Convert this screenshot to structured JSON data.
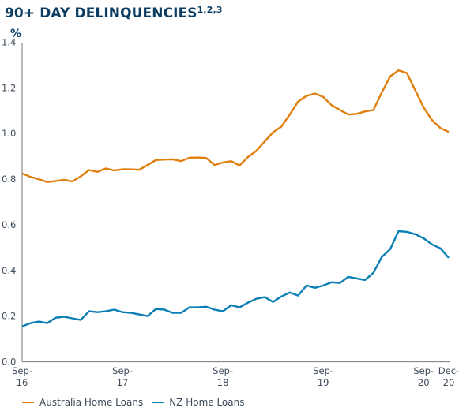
{
  "chart_data": {
    "type": "line",
    "title": "90+ DAY DELINQUENCIES",
    "title_superscript": "1,2,3",
    "ylabel": "%",
    "xlabel": "",
    "ylim": [
      0,
      1.4
    ],
    "yticks": [
      "0.0",
      "0.2",
      "0.4",
      "0.6",
      "0.8",
      "1.0",
      "1.2",
      "1.4"
    ],
    "ytick_values": [
      0,
      0.2,
      0.4,
      0.6,
      0.8,
      1.0,
      1.2,
      1.4
    ],
    "x_start": "Sep-16",
    "x_end": "Dec-20",
    "x_count": 52,
    "xticks": [
      {
        "month_index": 0,
        "line1": "Sep-",
        "line2": "16"
      },
      {
        "month_index": 12,
        "line1": "Sep-",
        "line2": "17"
      },
      {
        "month_index": 24,
        "line1": "Sep-",
        "line2": "18"
      },
      {
        "month_index": 36,
        "line1": "Sep-",
        "line2": "19"
      },
      {
        "month_index": 48,
        "line1": "Sep-",
        "line2": "20"
      },
      {
        "month_index": 51,
        "line1": "Dec-",
        "line2": "20"
      }
    ],
    "grid": false,
    "legend_position": "bottom-left",
    "series": [
      {
        "name": "Australia Home Loans",
        "color": "#e07e0b",
        "values": [
          0.825,
          0.81,
          0.8,
          0.787,
          0.792,
          0.797,
          0.79,
          0.812,
          0.84,
          0.832,
          0.847,
          0.838,
          0.843,
          0.843,
          0.841,
          0.862,
          0.884,
          0.886,
          0.887,
          0.879,
          0.894,
          0.895,
          0.893,
          0.862,
          0.873,
          0.879,
          0.86,
          0.897,
          0.924,
          0.965,
          1.005,
          1.03,
          1.083,
          1.14,
          1.165,
          1.175,
          1.16,
          1.124,
          1.103,
          1.083,
          1.086,
          1.097,
          1.103,
          1.18,
          1.25,
          1.277,
          1.265,
          1.19,
          1.114,
          1.059,
          1.024,
          1.007
        ]
      },
      {
        "name": "NZ Home Loans",
        "color": "#0a7fb5",
        "values": [
          0.155,
          0.169,
          0.176,
          0.169,
          0.193,
          0.197,
          0.19,
          0.183,
          0.221,
          0.217,
          0.221,
          0.228,
          0.217,
          0.214,
          0.207,
          0.2,
          0.231,
          0.228,
          0.214,
          0.214,
          0.238,
          0.238,
          0.241,
          0.228,
          0.221,
          0.248,
          0.238,
          0.259,
          0.276,
          0.283,
          0.262,
          0.286,
          0.303,
          0.29,
          0.334,
          0.324,
          0.334,
          0.348,
          0.345,
          0.372,
          0.365,
          0.358,
          0.39,
          0.459,
          0.493,
          0.572,
          0.569,
          0.559,
          0.541,
          0.514,
          0.497,
          0.455
        ]
      }
    ]
  }
}
